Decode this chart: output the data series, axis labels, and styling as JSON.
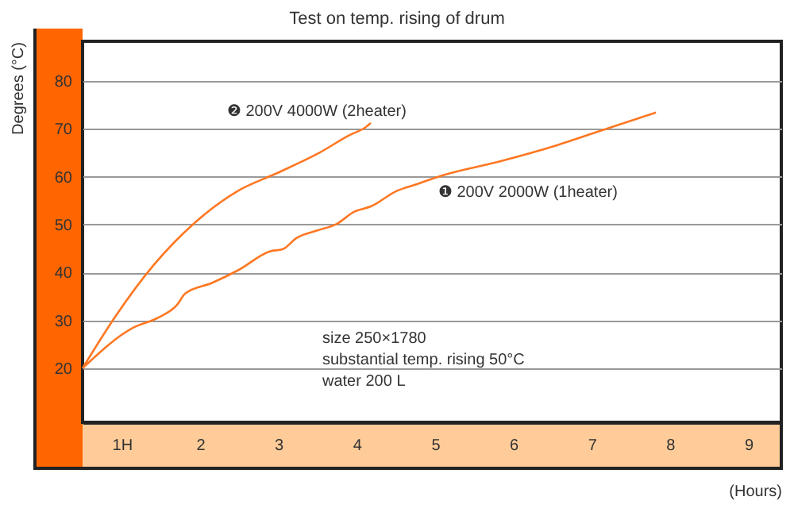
{
  "chart_data": {
    "type": "line",
    "title": "Test on temp. rising of drum",
    "xlabel": "(Hours)",
    "ylabel": "Degrees (°C)",
    "xlim": [
      0,
      8.92
    ],
    "ylim": [
      8.7,
      88.3
    ],
    "xticks": [
      {
        "value": 0.5,
        "label": "1H"
      },
      {
        "value": 1.5,
        "label": "2"
      },
      {
        "value": 2.5,
        "label": "3"
      },
      {
        "value": 3.5,
        "label": "4"
      },
      {
        "value": 4.5,
        "label": "5"
      },
      {
        "value": 5.5,
        "label": "6"
      },
      {
        "value": 6.5,
        "label": "7"
      },
      {
        "value": 7.5,
        "label": "8"
      },
      {
        "value": 8.5,
        "label": "9"
      }
    ],
    "yticks": [
      20,
      30,
      40,
      50,
      60,
      70,
      80
    ],
    "grid": "y",
    "line_style": "solid",
    "series": [
      {
        "color": "#ff7722",
        "x": [
          0,
          0.41,
          0.91,
          1.44,
          1.99,
          2.46,
          3.0,
          3.41,
          3.61,
          3.68
        ],
        "values": [
          20,
          30.6,
          41.6,
          50.5,
          57.1,
          60.6,
          64.8,
          68.7,
          70.3,
          71.2
        ]
      },
      {
        "color": "#ff7722",
        "x": [
          0,
          0.64,
          0.97,
          1.21,
          1.31,
          1.65,
          1.99,
          2.39,
          2.56,
          2.73,
          3.0,
          3.24,
          3.47,
          3.68,
          4.02,
          4.22,
          4.62,
          5.3,
          6.04,
          6.65,
          7.32
        ],
        "values": [
          20,
          28.4,
          30.6,
          33.3,
          35.6,
          37.8,
          40.5,
          44.4,
          44.9,
          47.2,
          48.8,
          50.1,
          52.7,
          53.8,
          57.1,
          58.2,
          60.4,
          63.1,
          66.5,
          69.8,
          73.4
        ]
      }
    ],
    "annotations": [
      "❷ 200V  4000W (2heater)",
      "❶ 200V  2000W (1heater)",
      "size  250×1780",
      "substantial temp. rising  50°C",
      "water  200 L"
    ]
  }
}
